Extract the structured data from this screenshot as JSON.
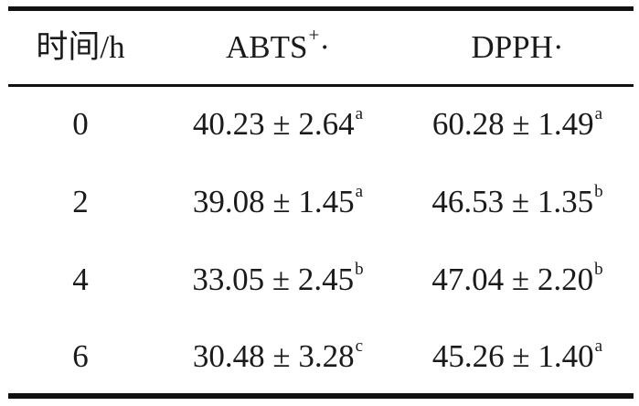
{
  "table": {
    "headers": [
      {
        "main": "时间/h",
        "sup": "",
        "after": ""
      },
      {
        "main": "ABTS",
        "sup": "+",
        "after": "·"
      },
      {
        "main": "DPPH",
        "sup": "",
        "after": "·"
      }
    ],
    "rows": [
      {
        "time": "0",
        "abts": "40.23 ± 2.64",
        "abts_sig": "a",
        "dpph": "60.28 ± 1.49",
        "dpph_sig": "a"
      },
      {
        "time": "2",
        "abts": "39.08 ± 1.45",
        "abts_sig": "a",
        "dpph": "46.53 ± 1.35",
        "dpph_sig": "b"
      },
      {
        "time": "4",
        "abts": "33.05 ± 2.45",
        "abts_sig": "b",
        "dpph": "47.04 ± 2.20",
        "dpph_sig": "b"
      },
      {
        "time": "6",
        "abts": "30.48 ± 3.28",
        "abts_sig": "c",
        "dpph": "45.26 ± 1.40",
        "dpph_sig": "a"
      }
    ]
  }
}
